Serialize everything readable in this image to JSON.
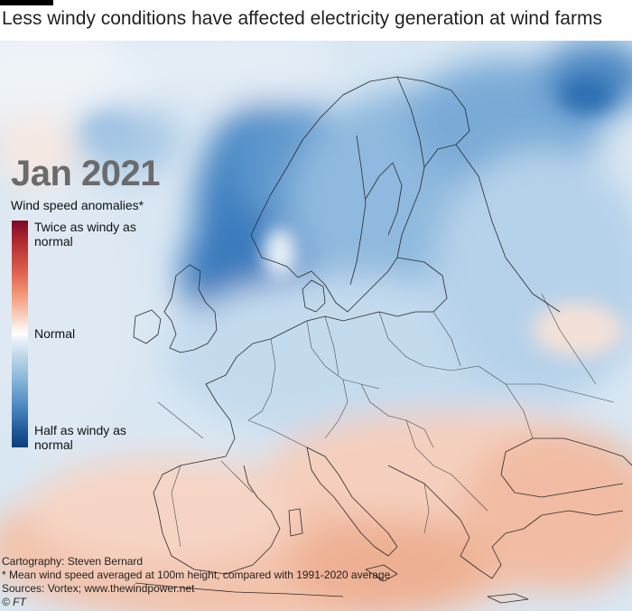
{
  "headline": "Less windy conditions have affected electricity generation at wind farms",
  "period": "Jan 2021",
  "legend": {
    "title": "Wind speed anomalies*",
    "top_label": "Twice as windy as normal",
    "middle_label": "Normal",
    "bottom_label": "Half as windy as normal",
    "colors": {
      "twice": "#7c0a27",
      "normal": "#ffffff",
      "half": "#0d3f7a"
    }
  },
  "map": {
    "region": "Europe",
    "anomaly_pattern": {
      "northern_europe": "less windy than normal",
      "north_sea": "less windy than normal",
      "southern_europe": "windier than normal"
    }
  },
  "footer": {
    "credit": "Cartography: Steven Bernard",
    "note": "* Mean wind speed averaged at 100m height, compared with 1991-2020 average",
    "sources": "Sources: Vortex; www.thewindpower.net",
    "copyright": "© FT"
  }
}
